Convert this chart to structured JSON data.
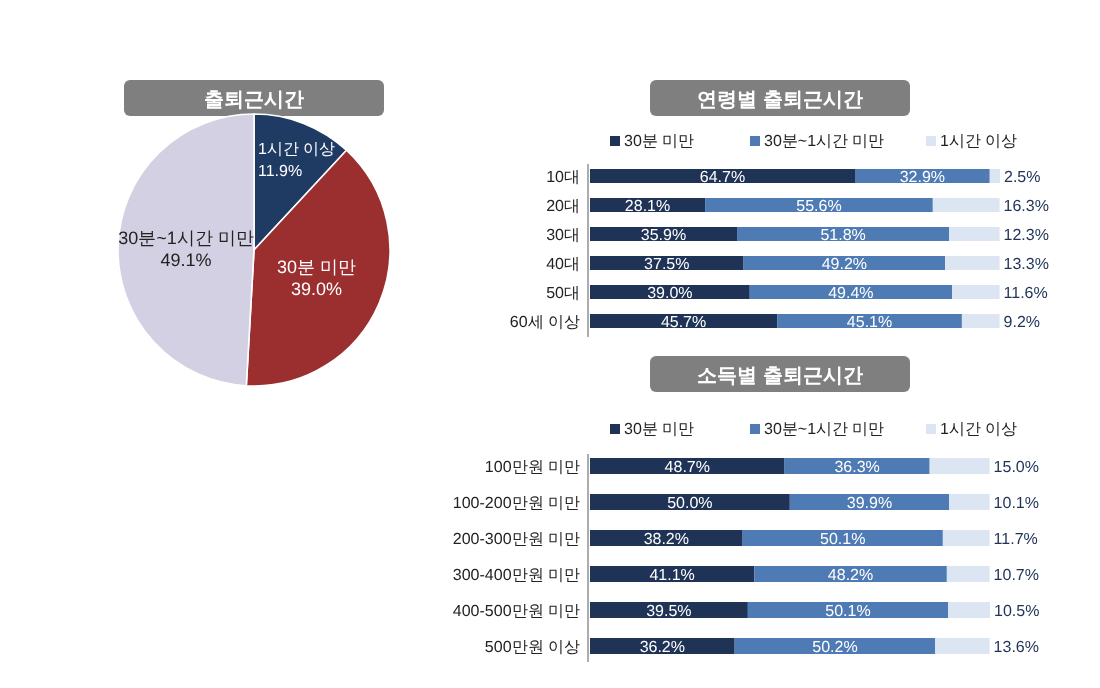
{
  "chart_data": [
    {
      "type": "pie",
      "title": "출퇴근시간",
      "categories": [
        "1시간 이상",
        "30분 미만",
        "30분~1시간 미만"
      ],
      "values": [
        11.9,
        39.0,
        49.1
      ],
      "value_labels": [
        "11.9%",
        "39.0%",
        "49.1%"
      ],
      "colors": [
        "#1f3b63",
        "#9b2f2f",
        "#d4d0e3"
      ]
    },
    {
      "type": "bar",
      "orientation": "horizontal",
      "stacked": true,
      "title": "연령별 출퇴근시간",
      "categories": [
        "10대",
        "20대",
        "30대",
        "40대",
        "50대",
        "60세 이상"
      ],
      "legend": "top",
      "series": [
        {
          "name": "30분 미만",
          "color": "#1f3356",
          "values": [
            64.7,
            28.1,
            35.9,
            37.5,
            39.0,
            45.7
          ],
          "value_labels": [
            "64.7%",
            "28.1%",
            "35.9%",
            "37.5%",
            "39.0%",
            "45.7%"
          ]
        },
        {
          "name": "30분~1시간 미만",
          "color": "#4f7bb5",
          "values": [
            32.9,
            55.6,
            51.8,
            49.2,
            49.4,
            45.1
          ],
          "value_labels": [
            "32.9%",
            "55.6%",
            "51.8%",
            "49.2%",
            "49.4%",
            "45.1%"
          ]
        },
        {
          "name": "1시간 이상",
          "color": "#dce6f2",
          "values": [
            2.5,
            16.3,
            12.3,
            13.3,
            11.6,
            9.2
          ],
          "value_labels": [
            "2.5%",
            "16.3%",
            "12.3%",
            "13.3%",
            "11.6%",
            "9.2%"
          ]
        }
      ]
    },
    {
      "type": "bar",
      "orientation": "horizontal",
      "stacked": true,
      "title": "소득별 출퇴근시간",
      "categories": [
        "100만원 미만",
        "100-200만원 미만",
        "200-300만원 미만",
        "300-400만원 미만",
        "400-500만원 미만",
        "500만원 이상"
      ],
      "legend": "top",
      "series": [
        {
          "name": "30분 미만",
          "color": "#1f3356",
          "values": [
            48.7,
            50.0,
            38.2,
            41.1,
            39.5,
            36.2
          ],
          "value_labels": [
            "48.7%",
            "50.0%",
            "38.2%",
            "41.1%",
            "39.5%",
            "36.2%"
          ]
        },
        {
          "name": "30분~1시간 미만",
          "color": "#4f7bb5",
          "values": [
            36.3,
            39.9,
            50.1,
            48.2,
            50.1,
            50.2
          ],
          "value_labels": [
            "36.3%",
            "39.9%",
            "50.1%",
            "48.2%",
            "50.1%",
            "50.2%"
          ]
        },
        {
          "name": "1시간 이상",
          "color": "#dce6f2",
          "values": [
            15.0,
            10.1,
            11.7,
            10.7,
            10.5,
            13.6
          ],
          "value_labels": [
            "15.0%",
            "10.1%",
            "11.7%",
            "10.7%",
            "10.5%",
            "13.6%"
          ]
        }
      ]
    }
  ]
}
